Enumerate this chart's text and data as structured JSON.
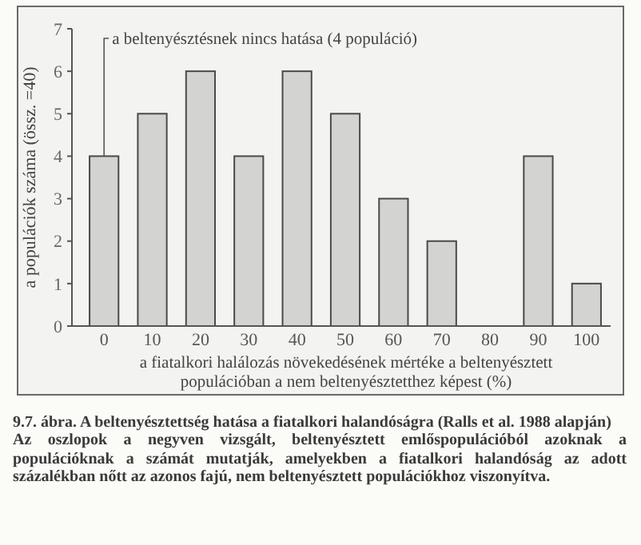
{
  "chart_data": {
    "type": "bar",
    "title": "9.7. ábra. A beltenyésztettség hatása a fiatalkori halandóságra (Ralls et al. 1988 alapján)",
    "xlabel": "a fiatalkori halálozás növekedésének mértéke a beltenyésztett populációban a nem beltenyésztetthez képest (%)",
    "ylabel": "a populációk száma (össz. =40)",
    "categories": [
      "0",
      "10",
      "20",
      "30",
      "40",
      "50",
      "60",
      "70",
      "80",
      "90",
      "100"
    ],
    "values": [
      4,
      5,
      6,
      4,
      6,
      5,
      3,
      2,
      0,
      4,
      1
    ],
    "color": "#d3d3d1",
    "ylim": [
      0,
      7
    ],
    "yticks": [
      0,
      1,
      2,
      3,
      4,
      5,
      6,
      7
    ],
    "annotations": [
      {
        "text": "a beltenyésztésnek nincs hatása (4 populáció)",
        "x": "0",
        "y": 4
      },
      "Az oszlopok a negyven vizsgált, beltenyésztett emlőspopulációból azoknak a populációknak a számát mutatják, amelyekben a fiatalkori halandóság az adott százalékban nőtt az azonos fajú, nem beltenyésztett populációkhoz viszonyítva."
    ]
  }
}
